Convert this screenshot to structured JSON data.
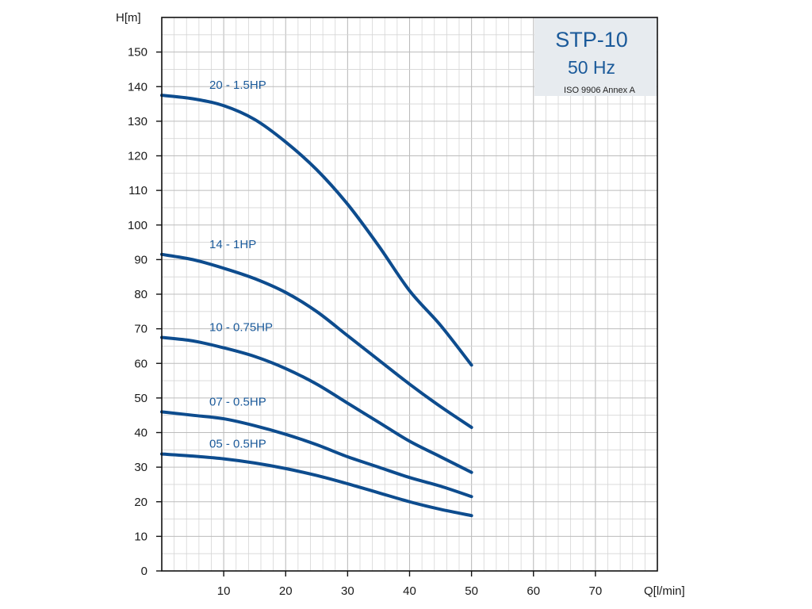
{
  "colors": {
    "curve": "#0d4c8e",
    "label": "#1b5a9a",
    "grid_minor": "#d5d5d5",
    "grid_major": "#bcbcbc",
    "axis": "#111111",
    "title_box_bg": "#e7ebef"
  },
  "chart_data": {
    "type": "line",
    "title": "STP-10",
    "subtitle": "50 Hz",
    "standard_note": "ISO 9906 Annex A",
    "xlabel": "Q[l/min]",
    "ylabel": "H[m]",
    "xlim": [
      0,
      80
    ],
    "ylim": [
      0,
      160
    ],
    "x_ticks": [
      "10",
      "20",
      "30",
      "40",
      "50",
      "60",
      "70"
    ],
    "y_ticks": [
      "0",
      "10",
      "20",
      "30",
      "40",
      "50",
      "60",
      "70",
      "80",
      "90",
      "100",
      "110",
      "120",
      "130",
      "140",
      "150"
    ],
    "grid": true,
    "series": [
      {
        "name": "20 - 1.5HP",
        "x": [
          0,
          5,
          10,
          15,
          20,
          25,
          30,
          35,
          40,
          45,
          50
        ],
        "y": [
          137.5,
          136.5,
          134.5,
          130.5,
          124,
          116,
          106,
          94,
          81,
          71,
          59.5
        ]
      },
      {
        "name": "14 - 1HP",
        "x": [
          0,
          5,
          10,
          15,
          20,
          25,
          30,
          35,
          40,
          45,
          50
        ],
        "y": [
          91.5,
          90,
          87.5,
          84.5,
          80.5,
          75,
          68,
          61,
          54,
          47.5,
          41.5
        ]
      },
      {
        "name": "10 - 0.75HP",
        "x": [
          0,
          5,
          10,
          15,
          20,
          25,
          30,
          35,
          40,
          45,
          50
        ],
        "y": [
          67.5,
          66.5,
          64.5,
          62,
          58.5,
          54,
          48.5,
          43,
          37.5,
          33,
          28.5
        ]
      },
      {
        "name": "07 - 0.5HP",
        "x": [
          0,
          5,
          10,
          15,
          20,
          25,
          30,
          35,
          40,
          45,
          50
        ],
        "y": [
          46,
          45,
          44,
          42,
          39.5,
          36.5,
          33,
          30,
          27,
          24.5,
          21.5
        ]
      },
      {
        "name": "05 - 0.5HP",
        "x": [
          0,
          5,
          10,
          15,
          20,
          25,
          30,
          35,
          40,
          45,
          50
        ],
        "y": [
          33.8,
          33.2,
          32.4,
          31.2,
          29.6,
          27.6,
          25.2,
          22.6,
          20,
          17.8,
          16
        ]
      }
    ]
  }
}
